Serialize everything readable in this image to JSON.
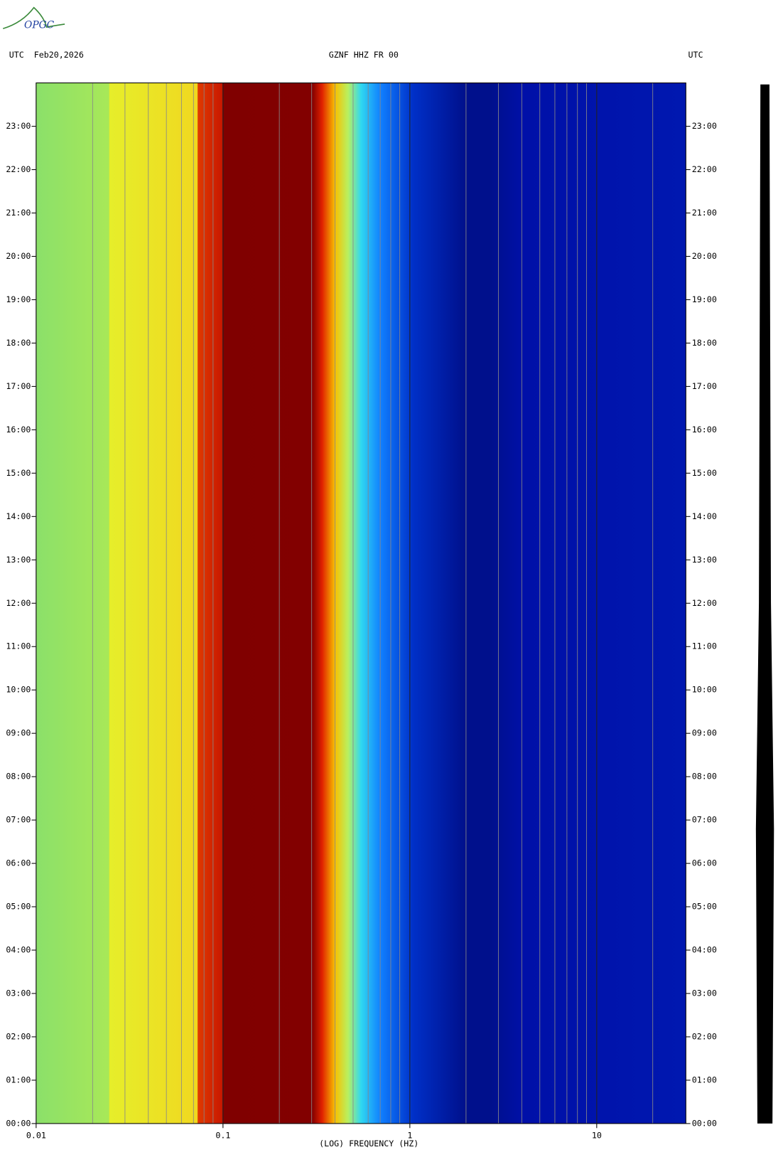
{
  "chart_data": {
    "type": "spectrogram",
    "logo": "OPGC",
    "left_header": "UTC  Feb20,2026",
    "title": "GZNF HHZ FR 00",
    "right_header": "UTC",
    "xlabel": "(LOG) FREQUENCY (HZ)",
    "xscale": "log",
    "xlim": [
      0.01,
      30
    ],
    "xticks": [
      0.01,
      0.1,
      1,
      10
    ],
    "ylim": [
      0,
      24
    ],
    "yticks": [
      {
        "value": 0,
        "label": "00:00"
      },
      {
        "value": 1,
        "label": "01:00"
      },
      {
        "value": 2,
        "label": "02:00"
      },
      {
        "value": 3,
        "label": "03:00"
      },
      {
        "value": 4,
        "label": "04:00"
      },
      {
        "value": 5,
        "label": "05:00"
      },
      {
        "value": 6,
        "label": "06:00"
      },
      {
        "value": 7,
        "label": "07:00"
      },
      {
        "value": 8,
        "label": "08:00"
      },
      {
        "value": 9,
        "label": "09:00"
      },
      {
        "value": 10,
        "label": "10:00"
      },
      {
        "value": 11,
        "label": "11:00"
      },
      {
        "value": 12,
        "label": "12:00"
      },
      {
        "value": 13,
        "label": "13:00"
      },
      {
        "value": 14,
        "label": "14:00"
      },
      {
        "value": 15,
        "label": "15:00"
      },
      {
        "value": 16,
        "label": "16:00"
      },
      {
        "value": 17,
        "label": "17:00"
      },
      {
        "value": 18,
        "label": "18:00"
      },
      {
        "value": 19,
        "label": "19:00"
      },
      {
        "value": 20,
        "label": "20:00"
      },
      {
        "value": 21,
        "label": "21:00"
      },
      {
        "value": 22,
        "label": "22:00"
      },
      {
        "value": 23,
        "label": "23:00"
      }
    ]
  }
}
